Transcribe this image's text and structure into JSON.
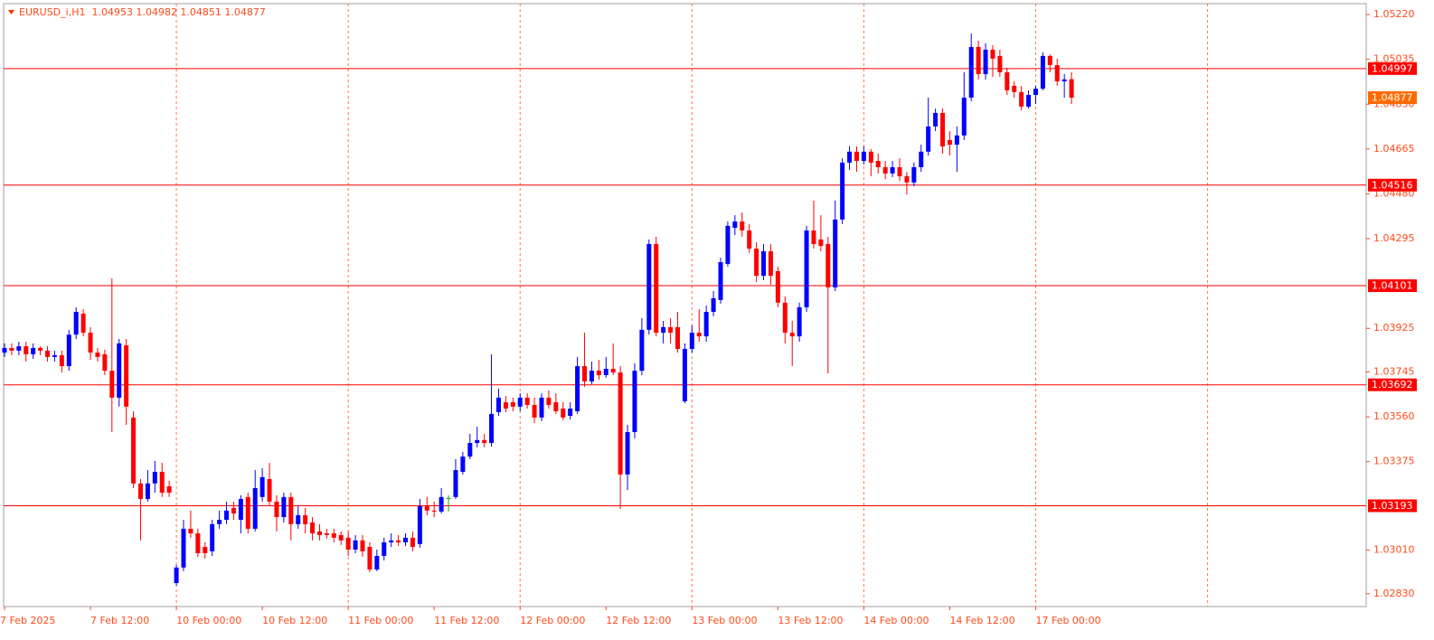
{
  "chart_data": {
    "type": "candlestick",
    "title": "EURUSD_i,H1  1.04953 1.04982 1.04851 1.04877",
    "categories": [
      "7 Feb 2025",
      null,
      null,
      null,
      null,
      null,
      null,
      null,
      null,
      null,
      null,
      null,
      "7 Feb 12:00",
      null,
      null,
      null,
      null,
      null,
      null,
      null,
      null,
      null,
      null,
      null,
      "10 Feb 00:00",
      null,
      null,
      null,
      null,
      null,
      null,
      null,
      null,
      null,
      null,
      null,
      "10 Feb 12:00",
      null,
      null,
      null,
      null,
      null,
      null,
      null,
      null,
      null,
      null,
      null,
      "11 Feb 00:00",
      null,
      null,
      null,
      null,
      null,
      null,
      null,
      null,
      null,
      null,
      null,
      "11 Feb 12:00",
      null,
      null,
      null,
      null,
      null,
      null,
      null,
      null,
      null,
      null,
      null,
      "12 Feb 00:00",
      null,
      null,
      null,
      null,
      null,
      null,
      null,
      null,
      null,
      null,
      null,
      "12 Feb 12:00",
      null,
      null,
      null,
      null,
      null,
      null,
      null,
      null,
      null,
      null,
      null,
      "13 Feb 00:00",
      null,
      null,
      null,
      null,
      null,
      null,
      null,
      null,
      null,
      null,
      null,
      "13 Feb 12:00",
      null,
      null,
      null,
      null,
      null,
      null,
      null,
      null,
      null,
      null,
      null,
      "14 Feb 00:00",
      null,
      null,
      null,
      null,
      null,
      null,
      null,
      null,
      null,
      null,
      null,
      "14 Feb 12:00",
      null,
      null,
      null,
      null,
      null,
      null,
      null,
      null,
      null,
      null,
      null,
      "17 Feb 00:00",
      null,
      null,
      null,
      null,
      null
    ],
    "open": [
      1.03825,
      1.03844,
      1.03833,
      1.03851,
      1.03818,
      1.03844,
      1.03833,
      1.03807,
      1.03814,
      1.03769,
      1.03899,
      1.03986,
      1.03907,
      1.03825,
      1.03818,
      1.0375,
      1.03639,
      1.03855,
      1.03557,
      1.03285,
      1.03221,
      1.03285,
      1.03333,
      1.03273,
      1.02874,
      1.02938,
      1.03098,
      1.03079,
      1.03023,
      1.03005,
      1.03117,
      1.03135,
      1.03184,
      1.03135,
      1.03229,
      1.03098,
      1.03229,
      1.03303,
      1.0321,
      1.03146,
      1.03229,
      1.03117,
      1.03154,
      1.03124,
      1.03087,
      1.03079,
      1.03079,
      1.03072,
      1.03061,
      1.03012,
      1.0305,
      1.03023,
      1.0293,
      1.02986,
      1.03042,
      1.0305,
      1.03042,
      1.03061,
      1.03035,
      1.03191,
      1.03173,
      1.03169,
      1.03225,
      1.03229,
      1.03333,
      1.03396,
      1.03452,
      1.03464,
      1.03452,
      1.03579,
      1.0362,
      1.0362,
      1.03602,
      1.03639,
      1.03609,
      1.03557,
      1.03639,
      1.0362,
      1.03594,
      1.03564,
      1.03583,
      1.03769,
      1.03706,
      1.0375,
      1.03732,
      1.03758,
      1.03743,
      1.03322,
      1.03497,
      1.0375,
      1.03919,
      1.04273,
      1.03907,
      1.0393,
      1.0393,
      1.03624,
      1.0384,
      1.03907,
      1.03892,
      1.03993,
      1.04042,
      1.04191,
      1.0434,
      1.04366,
      1.04329,
      1.04254,
      1.04142,
      1.04243,
      1.04161,
      1.04031,
      1.03907,
      1.03892,
      1.04012,
      1.04329,
      1.04292,
      1.04273,
      1.04094,
      1.04374,
      1.04609,
      1.04654,
      1.04616,
      1.04654,
      1.04616,
      1.0459,
      1.04564,
      1.0459,
      1.04553,
      1.04527,
      1.0459,
      1.04654,
      1.04758,
      1.04814,
      1.04702,
      1.04683,
      1.04721,
      1.04877,
      1.05086,
      1.04974,
      1.05075,
      1.05049,
      1.04982,
      1.04926,
      1.049,
      1.0484,
      1.04888,
      1.04914,
      1.05049,
      1.05011,
      1.04944,
      1.04953
    ],
    "high": [
      1.03863,
      1.03863,
      1.0387,
      1.0387,
      1.03863,
      1.03851,
      1.03851,
      1.03833,
      1.03833,
      1.03919,
      1.04012,
      1.04004,
      1.0393,
      1.03844,
      1.03837,
      1.04131,
      1.03881,
      1.03881,
      1.03583,
      1.03303,
      1.0334,
      1.03378,
      1.0337,
      1.03296,
      1.02949,
      1.03135,
      1.03173,
      1.03098,
      1.03042,
      1.03135,
      1.03173,
      1.0321,
      1.0321,
      1.03236,
      1.03247,
      1.0334,
      1.03348,
      1.0337,
      1.03236,
      1.03247,
      1.03247,
      1.03191,
      1.03184,
      1.03146,
      1.03117,
      1.03098,
      1.03098,
      1.03087,
      1.03087,
      1.03072,
      1.03072,
      1.03042,
      1.03012,
      1.03061,
      1.03079,
      1.03072,
      1.03079,
      1.03087,
      1.03221,
      1.03229,
      1.0321,
      1.03266,
      1.03236,
      1.03385,
      1.03415,
      1.0349,
      1.03519,
      1.0349,
      1.03818,
      1.03676,
      1.03646,
      1.03639,
      1.03657,
      1.03657,
      1.03639,
      1.03657,
      1.03669,
      1.03657,
      1.0362,
      1.0362,
      1.03807,
      1.03907,
      1.03788,
      1.03795,
      1.03807,
      1.03863,
      1.03769,
      1.03527,
      1.03781,
      1.03967,
      1.04292,
      1.04303,
      1.03956,
      1.03967,
      1.03993,
      1.03863,
      1.03937,
      1.04004,
      1.04019,
      1.04079,
      1.04217,
      1.04366,
      1.04392,
      1.04403,
      1.04355,
      1.0428,
      1.04273,
      1.04273,
      1.0418,
      1.04057,
      1.03956,
      1.04031,
      1.04348,
      1.04452,
      1.04392,
      1.04303,
      1.04452,
      1.04627,
      1.04676,
      1.04676,
      1.04676,
      1.04665,
      1.04646,
      1.04616,
      1.04616,
      1.04627,
      1.04571,
      1.04609,
      1.04683,
      1.04877,
      1.04832,
      1.04832,
      1.04739,
      1.04758,
      1.04982,
      1.05142,
      1.05112,
      1.05101,
      1.05094,
      1.05075,
      1.05,
      1.04944,
      1.04926,
      1.04907,
      1.04926,
      1.05064,
      1.05056,
      1.05038,
      1.04974,
      1.04982
    ],
    "low": [
      1.03807,
      1.03814,
      1.03814,
      1.03788,
      1.03799,
      1.03814,
      1.03788,
      1.03788,
      1.03743,
      1.0375,
      1.03881,
      1.03892,
      1.03795,
      1.03788,
      1.03732,
      1.03497,
      1.03602,
      1.03527,
      1.03266,
      1.0305,
      1.0321,
      1.03247,
      1.03229,
      1.03229,
      1.02863,
      1.02923,
      1.03061,
      1.02982,
      1.02975,
      1.02986,
      1.03098,
      1.03117,
      1.03135,
      1.03079,
      1.03079,
      1.03087,
      1.0321,
      1.03191,
      1.03087,
      1.03124,
      1.0305,
      1.03098,
      1.03079,
      1.0305,
      1.0305,
      1.03057,
      1.03042,
      1.03031,
      1.02986,
      1.02997,
      1.02982,
      1.02919,
      1.02923,
      1.02967,
      1.03023,
      1.03027,
      1.03027,
      1.03005,
      1.0302,
      1.03154,
      1.03146,
      1.03161,
      1.03169,
      1.03221,
      1.03322,
      1.03385,
      1.03434,
      1.03434,
      1.03437,
      1.03564,
      1.03579,
      1.03583,
      1.03583,
      1.03594,
      1.03534,
      1.03542,
      1.03594,
      1.03572,
      1.03546,
      1.03549,
      1.03572,
      1.03684,
      1.03695,
      1.03713,
      1.03721,
      1.03732,
      1.0318,
      1.03258,
      1.03471,
      1.03732,
      1.03899,
      1.03892,
      1.03863,
      1.03863,
      1.03825,
      1.03616,
      1.03825,
      1.0387,
      1.0387,
      1.03975,
      1.04027,
      1.0418,
      1.0431,
      1.04303,
      1.04236,
      1.04116,
      1.04124,
      1.04105,
      1.04012,
      1.03863,
      1.03769,
      1.0387,
      1.03993,
      1.04254,
      1.04243,
      1.03739,
      1.04079,
      1.04355,
      1.04579,
      1.04571,
      1.04601,
      1.04553,
      1.04564,
      1.04541,
      1.04549,
      1.04534,
      1.04478,
      1.04512,
      1.04571,
      1.04638,
      1.04739,
      1.04646,
      1.04638,
      1.04571,
      1.04702,
      1.04862,
      1.04952,
      1.04952,
      1.04963,
      1.04963,
      1.04888,
      1.04877,
      1.04825,
      1.04832,
      1.04851,
      1.04907,
      1.04982,
      1.04926,
      1.04877,
      1.04851
    ],
    "close": [
      1.03844,
      1.03833,
      1.03851,
      1.03818,
      1.03844,
      1.03833,
      1.03807,
      1.03814,
      1.03769,
      1.03899,
      1.03993,
      1.03907,
      1.03825,
      1.03807,
      1.0375,
      1.03639,
      1.03863,
      1.03602,
      1.03285,
      1.03221,
      1.03285,
      1.03333,
      1.03247,
      1.03247,
      1.02938,
      1.03098,
      1.03079,
      1.02997,
      1.02997,
      1.03117,
      1.03135,
      1.03173,
      1.03161,
      1.03221,
      1.03098,
      1.03266,
      1.03311,
      1.0321,
      1.03146,
      1.03229,
      1.03117,
      1.03154,
      1.03117,
      1.03079,
      1.03072,
      1.03072,
      1.03061,
      1.0305,
      1.03012,
      1.0305,
      1.03005,
      1.0293,
      1.02986,
      1.03042,
      1.0305,
      1.03042,
      1.03061,
      1.03023,
      1.03191,
      1.03173,
      1.03169,
      1.03229,
      1.03225,
      1.0334,
      1.03396,
      1.03452,
      1.03464,
      1.03452,
      1.03572,
      1.03639,
      1.03594,
      1.03602,
      1.03639,
      1.03609,
      1.03557,
      1.03639,
      1.03609,
      1.03583,
      1.03557,
      1.03594,
      1.03769,
      1.03706,
      1.0375,
      1.03732,
      1.03758,
      1.03743,
      1.03322,
      1.03497,
      1.0375,
      1.03919,
      1.04273,
      1.03907,
      1.0393,
      1.03907,
      1.0384,
      1.0384,
      1.03907,
      1.03892,
      1.03993,
      1.04049,
      1.04198,
      1.04348,
      1.04366,
      1.04329,
      1.04254,
      1.04142,
      1.04243,
      1.04142,
      1.04031,
      1.03907,
      1.03892,
      1.04012,
      1.04329,
      1.04273,
      1.04265,
      1.04094,
      1.04374,
      1.04609,
      1.04654,
      1.04616,
      1.04654,
      1.04609,
      1.0459,
      1.04564,
      1.0459,
      1.04553,
      1.04527,
      1.0459,
      1.04654,
      1.04758,
      1.04814,
      1.04676,
      1.04683,
      1.04721,
      1.04877,
      1.05086,
      1.04974,
      1.05075,
      1.05038,
      1.04982,
      1.04907,
      1.049,
      1.0484,
      1.04888,
      1.04914,
      1.05049,
      1.05011,
      1.04944,
      1.04952,
      1.04877
    ],
    "up_color": "#0000ff",
    "down_color": "#ff0000",
    "doji_color": "#00b000",
    "ylim": [
      1.02777,
      1.05265
    ],
    "yticks": [
      {
        "value": 1.0522,
        "label": "1.05220"
      },
      1.05035,
      {
        "value": 1.0485,
        "label": "1.04850"
      },
      1.04665,
      {
        "value": 1.0448,
        "label": "1.04480"
      },
      1.04295,
      1.03925,
      1.03745,
      {
        "value": 1.0356,
        "label": "1.03560"
      },
      1.03375,
      {
        "value": 1.0301,
        "label": "1.03010"
      },
      {
        "value": 1.0283,
        "label": "1.02830"
      }
    ],
    "levels": [
      1.04997,
      1.04516,
      1.04101,
      1.03692,
      1.03193
    ],
    "level_color": "#ff0000",
    "last_price": 1.04877,
    "last_price_color": "#ff6a00"
  }
}
